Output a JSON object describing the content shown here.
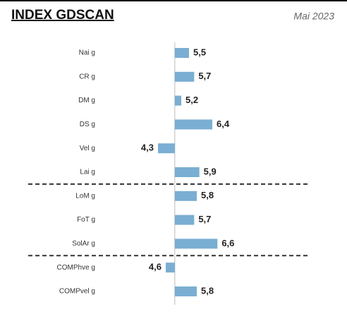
{
  "chart_data": {
    "type": "bar",
    "orientation": "horizontal",
    "title": "INDEX GDSCAN",
    "subtitle": "Mai 2023",
    "categories": [
      "Nai g",
      "CR g",
      "DM g",
      "DS g",
      "Vel g",
      "Lai g",
      "LoM g",
      "FoT g",
      "SolAr g",
      "COMPhve g",
      "COMPvel g"
    ],
    "values": [
      5.5,
      5.7,
      5.2,
      6.4,
      4.3,
      5.9,
      5.8,
      5.7,
      6.6,
      4.6,
      5.8
    ],
    "value_labels": [
      "5,5",
      "5,7",
      "5,2",
      "6,4",
      "4,3",
      "5,9",
      "5,8",
      "5,7",
      "6,6",
      "4,6",
      "5,8"
    ],
    "color": "#7aaed3",
    "xlim": [
      4.0,
      7.0
    ],
    "reference_line": 4.95,
    "separators_after": [
      5,
      8
    ]
  }
}
